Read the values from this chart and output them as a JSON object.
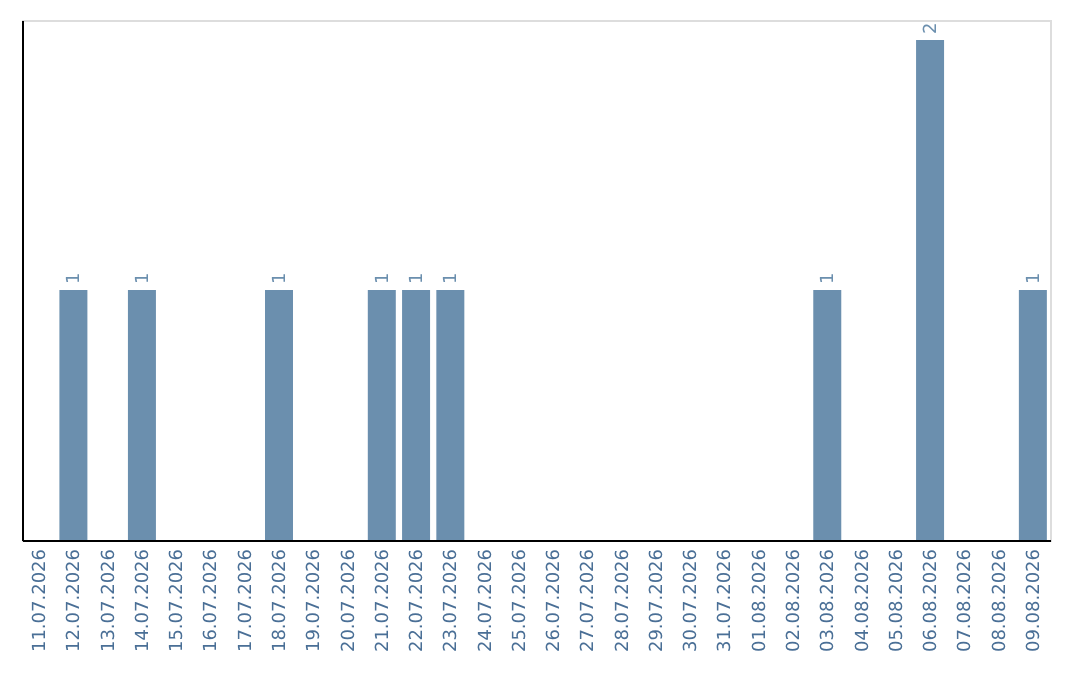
{
  "chart_data": {
    "type": "bar",
    "categories": [
      "11.07.2026",
      "12.07.2026",
      "13.07.2026",
      "14.07.2026",
      "15.07.2026",
      "16.07.2026",
      "17.07.2026",
      "18.07.2026",
      "19.07.2026",
      "20.07.2026",
      "21.07.2026",
      "22.07.2026",
      "23.07.2026",
      "24.07.2026",
      "25.07.2026",
      "26.07.2026",
      "27.07.2026",
      "28.07.2026",
      "29.07.2026",
      "30.07.2026",
      "31.07.2026",
      "01.08.2026",
      "02.08.2026",
      "03.08.2026",
      "04.08.2026",
      "05.08.2026",
      "06.08.2026",
      "07.08.2026",
      "08.08.2026",
      "09.08.2026"
    ],
    "values": [
      0,
      1,
      0,
      1,
      0,
      0,
      0,
      1,
      0,
      0,
      1,
      1,
      1,
      0,
      0,
      0,
      0,
      0,
      0,
      0,
      0,
      0,
      0,
      1,
      0,
      0,
      2,
      0,
      0,
      1
    ],
    "value_labels": [
      null,
      "1",
      null,
      "1",
      null,
      null,
      null,
      "1",
      null,
      null,
      "1",
      "1",
      "1",
      null,
      null,
      null,
      null,
      null,
      null,
      null,
      null,
      null,
      null,
      "1",
      null,
      null,
      "2",
      null,
      null,
      "1"
    ],
    "color": "#6b8fae",
    "ylim": [
      0,
      2.08
    ],
    "tick_labels": "x"
  }
}
